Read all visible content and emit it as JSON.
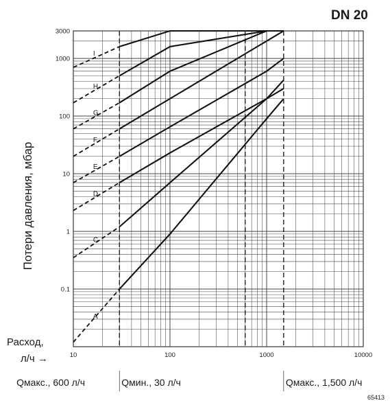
{
  "chart_data": {
    "type": "line",
    "title": "DN 20",
    "ylabel": "Потери давления, мбар",
    "xlabel": "Расход, л/ч →",
    "xscale": "log",
    "yscale": "log",
    "xlim": [
      10,
      10000
    ],
    "ylim": [
      0.01,
      3000
    ],
    "grid": true,
    "x_ticks": [
      "10",
      "100",
      "1000",
      "10000"
    ],
    "y_ticks": [
      "0.1",
      "1",
      "10",
      "100",
      "1000",
      "3000"
    ],
    "annotations": [
      {
        "text": "Qмакс., 600 л/ч",
        "x": 600
      },
      {
        "text": "Qмин., 30 л/ч",
        "x": 30
      },
      {
        "text": "Qмакс., 1,500 л/ч",
        "x": 1500
      }
    ],
    "figure_code": "65413",
    "series": [
      {
        "name": "A",
        "x": [
          10,
          30,
          100,
          1000,
          1500
        ],
        "y": [
          0.012,
          0.1,
          0.9,
          90,
          200
        ]
      },
      {
        "name": "C",
        "x": [
          10,
          30,
          100,
          1000,
          1500
        ],
        "y": [
          0.35,
          1.2,
          7,
          200,
          420
        ]
      },
      {
        "name": "D",
        "x": [
          10,
          30,
          100,
          1000,
          1500
        ],
        "y": [
          2.3,
          7,
          23,
          200,
          300
        ]
      },
      {
        "name": "E",
        "x": [
          10,
          30,
          100,
          1000,
          1500
        ],
        "y": [
          7,
          20,
          65,
          600,
          1000
        ]
      },
      {
        "name": "F",
        "x": [
          10,
          30,
          100,
          1000,
          1500
        ],
        "y": [
          20,
          60,
          200,
          2000,
          3000
        ]
      },
      {
        "name": "G",
        "x": [
          10,
          30,
          100,
          1000,
          1500
        ],
        "y": [
          60,
          170,
          600,
          3000,
          3000
        ]
      },
      {
        "name": "H",
        "x": [
          10,
          30,
          100,
          1000,
          1500
        ],
        "y": [
          170,
          500,
          1600,
          3000,
          3000
        ]
      },
      {
        "name": "I",
        "x": [
          10,
          30,
          100,
          1000,
          1500
        ],
        "y": [
          700,
          1600,
          3000,
          3000,
          3000
        ]
      }
    ]
  }
}
